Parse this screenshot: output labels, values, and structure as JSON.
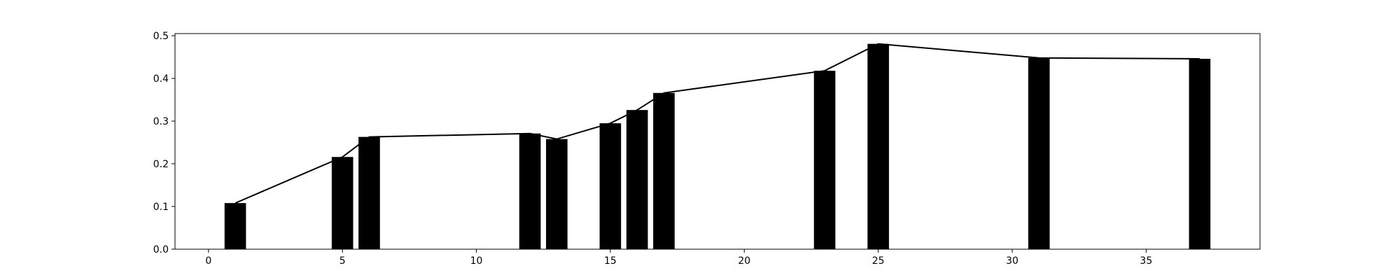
{
  "chart_data": {
    "type": "bar",
    "title": "",
    "xlabel": "",
    "ylabel": "",
    "xlim": [
      -1.25,
      39.25
    ],
    "ylim": [
      0,
      0.505
    ],
    "grid": false,
    "bar_width": 0.8,
    "bar_color": "#000000",
    "line_color": "#000000",
    "x_ticks": [
      0,
      5,
      10,
      15,
      20,
      25,
      30,
      35
    ],
    "y_ticks": [
      0.0,
      0.1,
      0.2,
      0.3,
      0.4,
      0.5
    ],
    "x_tick_labels": [
      "0",
      "5",
      "10",
      "15",
      "20",
      "25",
      "30",
      "35"
    ],
    "y_tick_labels": [
      "0.0",
      "0.1",
      "0.2",
      "0.3",
      "0.4",
      "0.5"
    ],
    "x": [
      1,
      5,
      6,
      12,
      13,
      15,
      16,
      17,
      23,
      25,
      31,
      37
    ],
    "series": [
      {
        "type": "bar",
        "values": [
          0.108,
          0.216,
          0.263,
          0.271,
          0.258,
          0.295,
          0.326,
          0.366,
          0.418,
          0.481,
          0.448,
          0.446
        ]
      },
      {
        "type": "line",
        "values": [
          0.108,
          0.216,
          0.263,
          0.271,
          0.258,
          0.295,
          0.326,
          0.366,
          0.418,
          0.481,
          0.448,
          0.446
        ]
      }
    ]
  }
}
